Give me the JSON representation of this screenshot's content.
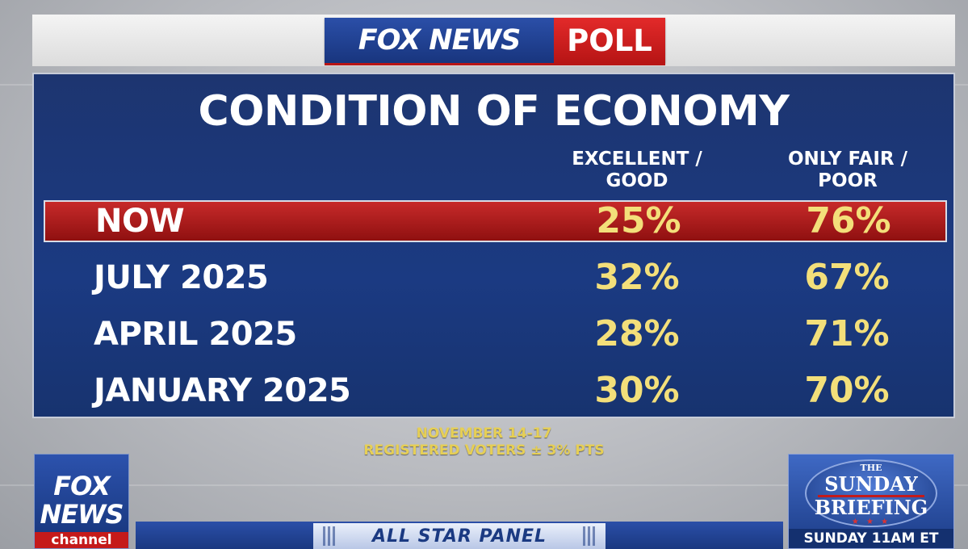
{
  "header": {
    "logo_fox_news": "FOX NEWS",
    "logo_poll": "POLL"
  },
  "board": {
    "title": "CONDITION OF ECONOMY",
    "columns": [
      "EXCELLENT / GOOD",
      "ONLY FAIR / POOR"
    ],
    "rows": [
      {
        "label": "NOW",
        "good": "25%",
        "poor": "76%"
      },
      {
        "label": "JULY 2025",
        "good": "32%",
        "poor": "67%"
      },
      {
        "label": "APRIL 2025",
        "good": "28%",
        "poor": "71%"
      },
      {
        "label": "JANUARY 2025",
        "good": "30%",
        "poor": "70%"
      }
    ]
  },
  "footnote": {
    "line1": "NOVEMBER 14-17",
    "line2": "REGISTERED VOTERS ± 3% PTS"
  },
  "lower_third": {
    "panel": "ALL STAR PANEL"
  },
  "channel_logo": {
    "line1": "FOX",
    "line2": "NEWS",
    "line3": "channel"
  },
  "promo": {
    "the": "THE",
    "title1": "SUNDAY",
    "title2": "BRIEFING",
    "time": "SUNDAY 11AM ET"
  },
  "colors": {
    "navy": "#1b3a82",
    "red": "#c72a2a",
    "gold": "#f3df7a"
  }
}
